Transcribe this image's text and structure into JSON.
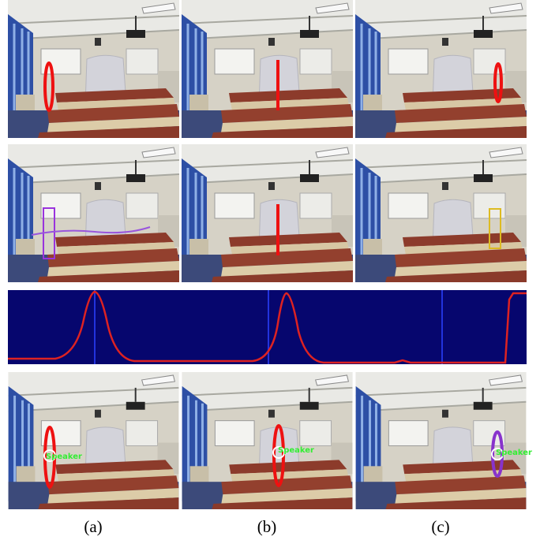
{
  "captions": [
    "(a)",
    "(b)",
    "(c)"
  ],
  "labels": [
    "Speaker",
    "Speaker",
    "Speaker"
  ]
}
